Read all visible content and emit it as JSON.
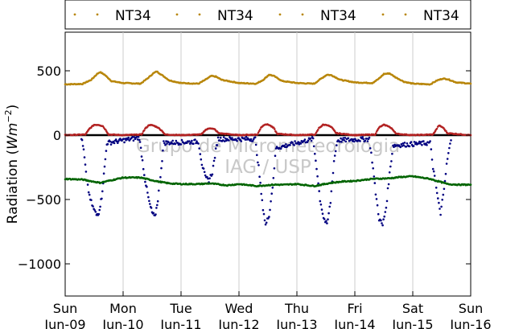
{
  "chart_data": {
    "type": "scatter",
    "ylabel": "Radiation (",
    "ylabel_unit_base": "Wm",
    "ylabel_unit_exp": "−2",
    "ylabel_close": ")",
    "ylim": [
      -1250,
      800
    ],
    "y_ticks": [
      500,
      0,
      -500,
      -1000
    ],
    "y_tick_labels": [
      "500",
      "0",
      "−500",
      "−1000"
    ],
    "x_range_days": [
      0,
      7
    ],
    "x_ticks": [
      {
        "day": "Sun",
        "date": "Jun-09"
      },
      {
        "day": "Mon",
        "date": "Jun-10"
      },
      {
        "day": "Tue",
        "date": "Jun-11"
      },
      {
        "day": "Wed",
        "date": "Jun-12"
      },
      {
        "day": "Thu",
        "date": "Jun-13"
      },
      {
        "day": "Fri",
        "date": "Jun-14"
      },
      {
        "day": "Sat",
        "date": "Jun-15"
      },
      {
        "day": "Sun",
        "date": "Jun-16"
      }
    ],
    "grid": "vertical",
    "legend_placement": "top",
    "legend": [
      "NT34",
      "NT34",
      "NT34",
      "NT34"
    ],
    "watermark_line1": "Grupo de Micrometeorologia",
    "watermark_line2": "IAG / USP",
    "series": [
      {
        "color": "#b8860b",
        "baseline": 400,
        "points": [
          [
            0.0,
            395
          ],
          [
            0.3,
            398
          ],
          [
            0.45,
            430
          ],
          [
            0.55,
            475
          ],
          [
            0.6,
            490
          ],
          [
            0.68,
            470
          ],
          [
            0.8,
            420
          ],
          [
            1.0,
            405
          ],
          [
            1.3,
            400
          ],
          [
            1.42,
            440
          ],
          [
            1.52,
            480
          ],
          [
            1.58,
            495
          ],
          [
            1.66,
            470
          ],
          [
            1.8,
            425
          ],
          [
            2.0,
            405
          ],
          [
            2.3,
            400
          ],
          [
            2.42,
            430
          ],
          [
            2.52,
            460
          ],
          [
            2.6,
            455
          ],
          [
            2.7,
            430
          ],
          [
            3.0,
            405
          ],
          [
            3.3,
            400
          ],
          [
            3.42,
            430
          ],
          [
            3.52,
            470
          ],
          [
            3.6,
            460
          ],
          [
            3.75,
            420
          ],
          [
            4.0,
            405
          ],
          [
            4.3,
            400
          ],
          [
            4.42,
            440
          ],
          [
            4.52,
            470
          ],
          [
            4.6,
            465
          ],
          [
            4.75,
            430
          ],
          [
            5.0,
            410
          ],
          [
            5.3,
            405
          ],
          [
            5.42,
            440
          ],
          [
            5.5,
            475
          ],
          [
            5.6,
            480
          ],
          [
            5.7,
            450
          ],
          [
            5.85,
            415
          ],
          [
            6.0,
            400
          ],
          [
            6.3,
            395
          ],
          [
            6.42,
            425
          ],
          [
            6.52,
            440
          ],
          [
            6.6,
            435
          ],
          [
            6.75,
            410
          ],
          [
            7.0,
            400
          ]
        ]
      },
      {
        "color": "#b22222",
        "baseline": 0,
        "points": [
          [
            0.0,
            0
          ],
          [
            0.35,
            5
          ],
          [
            0.42,
            50
          ],
          [
            0.5,
            80
          ],
          [
            0.58,
            80
          ],
          [
            0.65,
            70
          ],
          [
            0.7,
            40
          ],
          [
            0.75,
            5
          ],
          [
            1.0,
            0
          ],
          [
            1.32,
            5
          ],
          [
            1.38,
            50
          ],
          [
            1.45,
            80
          ],
          [
            1.52,
            75
          ],
          [
            1.6,
            60
          ],
          [
            1.68,
            30
          ],
          [
            1.72,
            5
          ],
          [
            2.0,
            0
          ],
          [
            2.35,
            5
          ],
          [
            2.42,
            40
          ],
          [
            2.5,
            55
          ],
          [
            2.58,
            45
          ],
          [
            2.65,
            15
          ],
          [
            3.0,
            0
          ],
          [
            3.32,
            5
          ],
          [
            3.38,
            60
          ],
          [
            3.45,
            85
          ],
          [
            3.52,
            80
          ],
          [
            3.6,
            55
          ],
          [
            3.66,
            10
          ],
          [
            4.0,
            0
          ],
          [
            4.32,
            5
          ],
          [
            4.38,
            55
          ],
          [
            4.45,
            80
          ],
          [
            4.52,
            80
          ],
          [
            4.6,
            60
          ],
          [
            4.68,
            15
          ],
          [
            5.0,
            0
          ],
          [
            5.35,
            5
          ],
          [
            5.42,
            60
          ],
          [
            5.5,
            80
          ],
          [
            5.58,
            70
          ],
          [
            5.65,
            45
          ],
          [
            5.72,
            10
          ],
          [
            6.0,
            0
          ],
          [
            6.35,
            5
          ],
          [
            6.4,
            40
          ],
          [
            6.45,
            75
          ],
          [
            6.52,
            60
          ],
          [
            6.6,
            15
          ],
          [
            7.0,
            0
          ]
        ]
      },
      {
        "color": "#000080",
        "baseline": 0,
        "points": [
          [
            0.28,
            -20
          ],
          [
            0.32,
            -120
          ],
          [
            0.36,
            -300
          ],
          [
            0.42,
            -480
          ],
          [
            0.48,
            -560
          ],
          [
            0.54,
            -620
          ],
          [
            0.58,
            -600
          ],
          [
            0.63,
            -480
          ],
          [
            0.68,
            -250
          ],
          [
            0.72,
            -60
          ],
          [
            1.28,
            -20
          ],
          [
            1.32,
            -150
          ],
          [
            1.38,
            -350
          ],
          [
            1.45,
            -520
          ],
          [
            1.5,
            -600
          ],
          [
            1.55,
            -640
          ],
          [
            1.6,
            -500
          ],
          [
            1.66,
            -250
          ],
          [
            1.7,
            -60
          ],
          [
            2.3,
            -50
          ],
          [
            2.36,
            -220
          ],
          [
            2.42,
            -330
          ],
          [
            2.48,
            -350
          ],
          [
            2.54,
            -290
          ],
          [
            2.6,
            -120
          ],
          [
            2.64,
            -30
          ],
          [
            3.28,
            -30
          ],
          [
            3.34,
            -250
          ],
          [
            3.4,
            -520
          ],
          [
            3.46,
            -700
          ],
          [
            3.52,
            -620
          ],
          [
            3.58,
            -400
          ],
          [
            3.64,
            -100
          ],
          [
            4.28,
            -30
          ],
          [
            4.34,
            -250
          ],
          [
            4.4,
            -500
          ],
          [
            4.46,
            -640
          ],
          [
            4.52,
            -700
          ],
          [
            4.58,
            -520
          ],
          [
            4.64,
            -200
          ],
          [
            4.7,
            -40
          ],
          [
            5.25,
            -30
          ],
          [
            5.3,
            -200
          ],
          [
            5.36,
            -450
          ],
          [
            5.42,
            -650
          ],
          [
            5.48,
            -700
          ],
          [
            5.54,
            -560
          ],
          [
            5.6,
            -300
          ],
          [
            5.66,
            -80
          ],
          [
            6.3,
            -60
          ],
          [
            6.35,
            -250
          ],
          [
            6.42,
            -450
          ],
          [
            6.48,
            -620
          ],
          [
            6.54,
            -400
          ],
          [
            6.6,
            -180
          ],
          [
            6.66,
            -40
          ]
        ]
      },
      {
        "color": "#006400",
        "baseline": -390,
        "points": [
          [
            0.0,
            -340
          ],
          [
            0.3,
            -345
          ],
          [
            0.6,
            -370
          ],
          [
            0.8,
            -350
          ],
          [
            1.0,
            -330
          ],
          [
            1.3,
            -330
          ],
          [
            1.6,
            -360
          ],
          [
            1.8,
            -375
          ],
          [
            2.0,
            -380
          ],
          [
            2.3,
            -380
          ],
          [
            2.5,
            -375
          ],
          [
            2.8,
            -390
          ],
          [
            3.0,
            -380
          ],
          [
            3.3,
            -395
          ],
          [
            3.6,
            -385
          ],
          [
            3.8,
            -385
          ],
          [
            4.0,
            -380
          ],
          [
            4.3,
            -395
          ],
          [
            4.6,
            -370
          ],
          [
            4.8,
            -360
          ],
          [
            5.0,
            -355
          ],
          [
            5.3,
            -340
          ],
          [
            5.6,
            -335
          ],
          [
            5.8,
            -325
          ],
          [
            6.0,
            -320
          ],
          [
            6.3,
            -340
          ],
          [
            6.6,
            -380
          ],
          [
            6.8,
            -385
          ],
          [
            7.0,
            -385
          ]
        ]
      }
    ]
  }
}
